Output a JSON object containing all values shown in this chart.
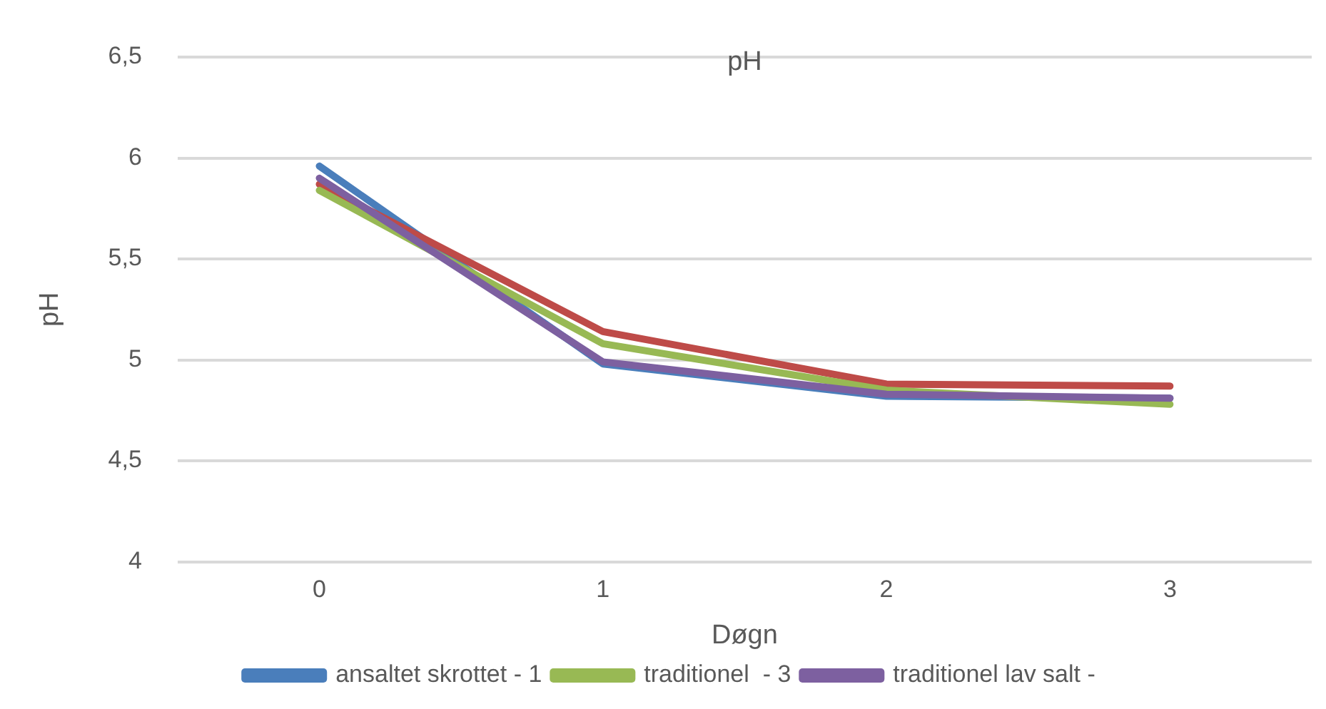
{
  "chart_data": {
    "type": "line",
    "title": "pH",
    "xlabel": "Døgn",
    "ylabel": "pH",
    "categories": [
      "0",
      "1",
      "2",
      "3"
    ],
    "series": [
      {
        "name": "ansaltet skrottet - 1",
        "color": "#4a7ebb",
        "values": [
          5.96,
          4.98,
          4.82,
          4.81
        ]
      },
      {
        "color": "#be4b48",
        "values": [
          5.87,
          5.14,
          4.88,
          4.87
        ]
      },
      {
        "name": "traditionel  - 3",
        "color": "#98b954",
        "values": [
          5.84,
          5.08,
          4.85,
          4.78
        ]
      },
      {
        "name": "traditionel lav salt -",
        "color": "#7d60a0",
        "values": [
          5.9,
          4.99,
          4.83,
          4.81
        ]
      }
    ],
    "ylim": [
      4,
      6.5
    ],
    "yticks": [
      4,
      {
        "value": 4.5,
        "label": "4,5"
      },
      5,
      {
        "value": 5.5,
        "label": "5,5"
      },
      6,
      {
        "value": 6.5,
        "label": "6,5"
      }
    ],
    "grid": "y",
    "legend": "bottom",
    "marker": "none",
    "line_style": "solid"
  }
}
